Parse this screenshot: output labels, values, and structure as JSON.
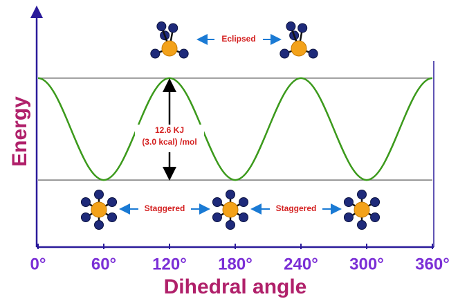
{
  "chart_data": {
    "type": "line",
    "x": [
      0,
      60,
      120,
      180,
      240,
      300,
      360
    ],
    "series": [
      {
        "color": "#3c9a1c",
        "values": [
          12.6,
          0,
          12.6,
          0,
          12.6,
          0,
          12.6
        ]
      }
    ],
    "xlim": [
      0,
      360
    ],
    "ylim": [
      -8.3,
      19.7
    ],
    "xticks": [
      {
        "value": 0,
        "label": "0°"
      },
      {
        "value": 60,
        "label": "60°"
      },
      {
        "value": 120,
        "label": "120°"
      },
      {
        "value": 180,
        "label": "180°"
      },
      {
        "value": 240,
        "label": "240°"
      },
      {
        "value": 300,
        "label": "300°"
      },
      {
        "value": 360,
        "label": "360°"
      }
    ],
    "xlabel": "Dihedral angle",
    "ylabel": "Energy",
    "annotations": [
      "12.6 KJ",
      "(3.0 kcal) /mol",
      "Eclipsed",
      "Staggered",
      "Staggered"
    ]
  }
}
